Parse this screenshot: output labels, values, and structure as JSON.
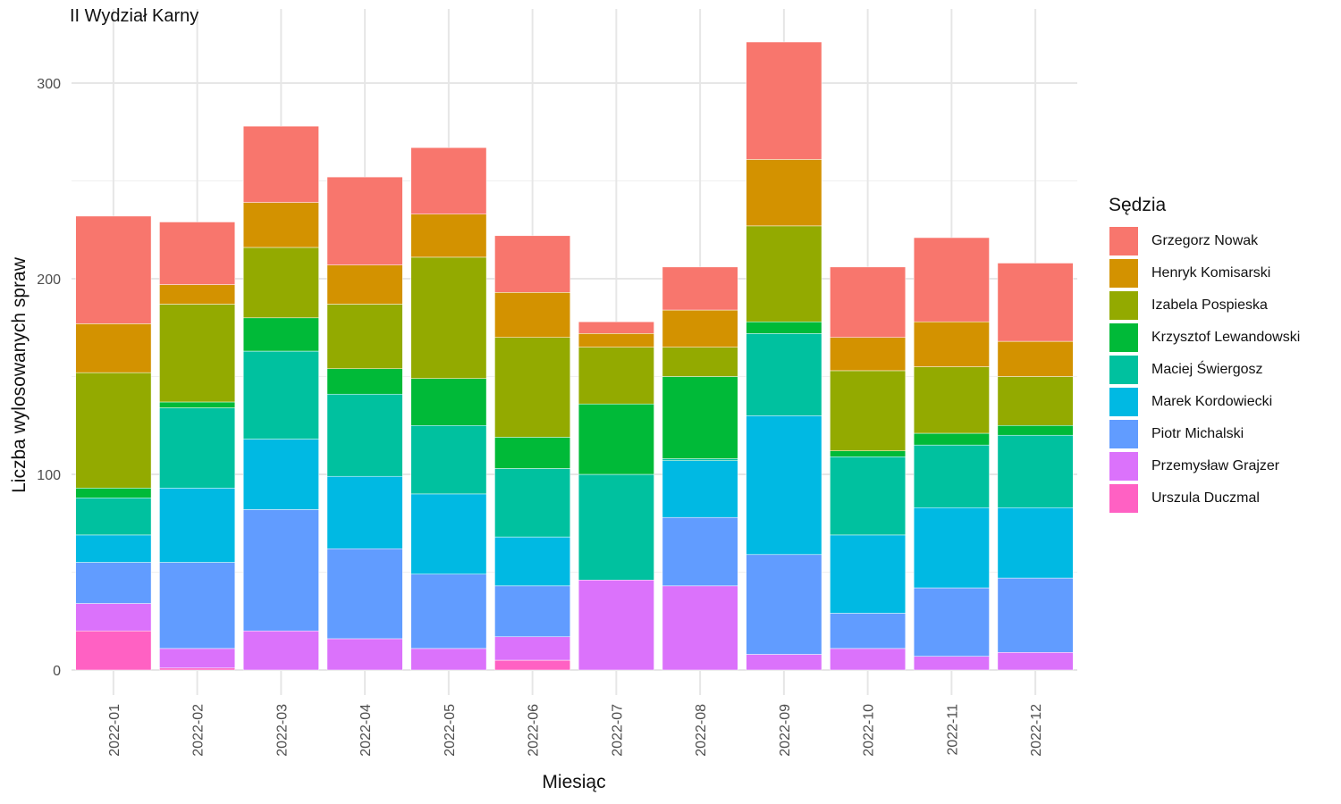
{
  "chart_data": {
    "type": "bar",
    "stacked": true,
    "title": "II Wydział Karny",
    "xlabel": "Miesiąc",
    "ylabel": "Liczba wylosowanych spraw",
    "legend_title": "Sędzia",
    "legend_position": "right",
    "grid": true,
    "ylim": [
      0,
      320
    ],
    "y_ticks": [
      0,
      100,
      200,
      300
    ],
    "categories": [
      "2022-01",
      "2022-02",
      "2022-03",
      "2022-04",
      "2022-05",
      "2022-06",
      "2022-07",
      "2022-08",
      "2022-09",
      "2022-10",
      "2022-11",
      "2022-12"
    ],
    "series": [
      {
        "name": "Urszula Duczmal",
        "color": "#FF61C3",
        "values": [
          20,
          1,
          0,
          0,
          0,
          5,
          0,
          0,
          0,
          0,
          0,
          0
        ]
      },
      {
        "name": "Przemysław Grajzer",
        "color": "#DB72FB",
        "values": [
          14,
          10,
          20,
          16,
          11,
          12,
          46,
          43,
          8,
          11,
          7,
          9
        ]
      },
      {
        "name": "Piotr Michalski",
        "color": "#619CFF",
        "values": [
          21,
          44,
          62,
          46,
          38,
          26,
          0,
          35,
          51,
          18,
          35,
          38
        ]
      },
      {
        "name": "Marek Kordowiecki",
        "color": "#00B9E3",
        "values": [
          14,
          38,
          36,
          37,
          41,
          25,
          0,
          29,
          71,
          40,
          41,
          36
        ]
      },
      {
        "name": "Maciej Świergosz",
        "color": "#00C19F",
        "values": [
          19,
          41,
          45,
          42,
          35,
          35,
          54,
          1,
          42,
          40,
          32,
          37
        ]
      },
      {
        "name": "Krzysztof Lewandowski",
        "color": "#00BA38",
        "values": [
          5,
          3,
          17,
          13,
          24,
          16,
          36,
          42,
          6,
          3,
          6,
          5
        ]
      },
      {
        "name": "Izabela Pospieska",
        "color": "#93AA00",
        "values": [
          59,
          50,
          36,
          33,
          62,
          51,
          29,
          15,
          49,
          41,
          34,
          25
        ]
      },
      {
        "name": "Henryk Komisarski",
        "color": "#D39200",
        "values": [
          25,
          10,
          23,
          20,
          22,
          23,
          7,
          19,
          34,
          17,
          23,
          18
        ]
      },
      {
        "name": "Grzegorz Nowak",
        "color": "#F8766D",
        "values": [
          55,
          32,
          39,
          45,
          34,
          29,
          6,
          22,
          60,
          36,
          43,
          40
        ]
      }
    ]
  }
}
